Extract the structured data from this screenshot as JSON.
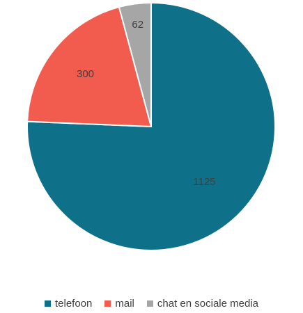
{
  "chart_data": {
    "type": "pie",
    "categories": [
      "telefoon",
      "mail",
      "chat en sociale media"
    ],
    "values": [
      1125,
      300,
      62
    ],
    "data_labels": [
      "1125",
      "300",
      "62"
    ],
    "colors": [
      "#0f7189",
      "#f25c4f",
      "#a6a6a6"
    ],
    "start_angle": "12 o'clock",
    "direction": "clockwise",
    "legend_position": "bottom"
  },
  "legend": {
    "items": [
      {
        "label": "telefoon",
        "color": "#0f7189"
      },
      {
        "label": "mail",
        "color": "#f25c4f"
      },
      {
        "label": "chat en sociale media",
        "color": "#a6a6a6"
      }
    ]
  }
}
